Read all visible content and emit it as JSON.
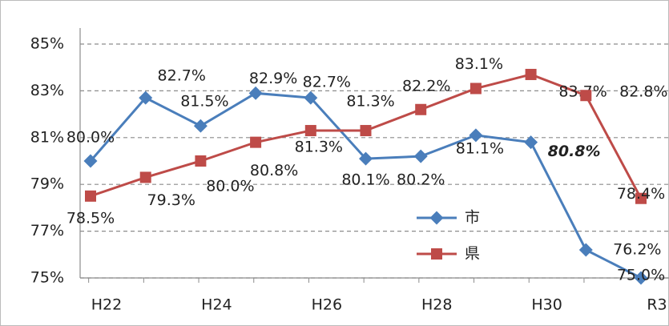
{
  "chart_data": {
    "type": "line",
    "categories": [
      "H22",
      null,
      "H24",
      null,
      "H26",
      null,
      "H28",
      null,
      "H30",
      null,
      "R3"
    ],
    "series": [
      {
        "name": "市",
        "color": "#4a7ebb",
        "values": [
          80.0,
          82.7,
          81.5,
          82.9,
          82.7,
          80.1,
          80.2,
          81.1,
          80.8,
          76.2,
          75.0
        ],
        "value_labels": [
          "80.0%",
          "82.7%",
          "81.5%",
          "82.9%",
          "82.7%",
          "80.1%",
          "80.2%",
          "81.1%",
          "80.8%",
          "76.2%",
          "75.0%"
        ]
      },
      {
        "name": "県",
        "color": "#be4b48",
        "values": [
          78.5,
          79.3,
          80.0,
          80.8,
          81.3,
          81.3,
          82.2,
          83.1,
          83.7,
          82.8,
          78.4
        ],
        "value_labels": [
          "78.5%",
          "79.3%",
          "80.0%",
          "80.8%",
          "81.3%",
          "81.3%",
          "82.2%",
          "83.1%",
          "83.7%",
          "82.8%",
          "78.4%"
        ]
      }
    ],
    "ylim": [
      75,
      85
    ],
    "yticks": [
      {
        "value": 75,
        "label": "75%"
      },
      {
        "value": 77,
        "label": "77%"
      },
      {
        "value": 79,
        "label": "79%"
      },
      {
        "value": 81,
        "label": "81%"
      },
      {
        "value": 83,
        "label": "83%"
      },
      {
        "value": 85,
        "label": "85%"
      }
    ],
    "grid": true
  }
}
